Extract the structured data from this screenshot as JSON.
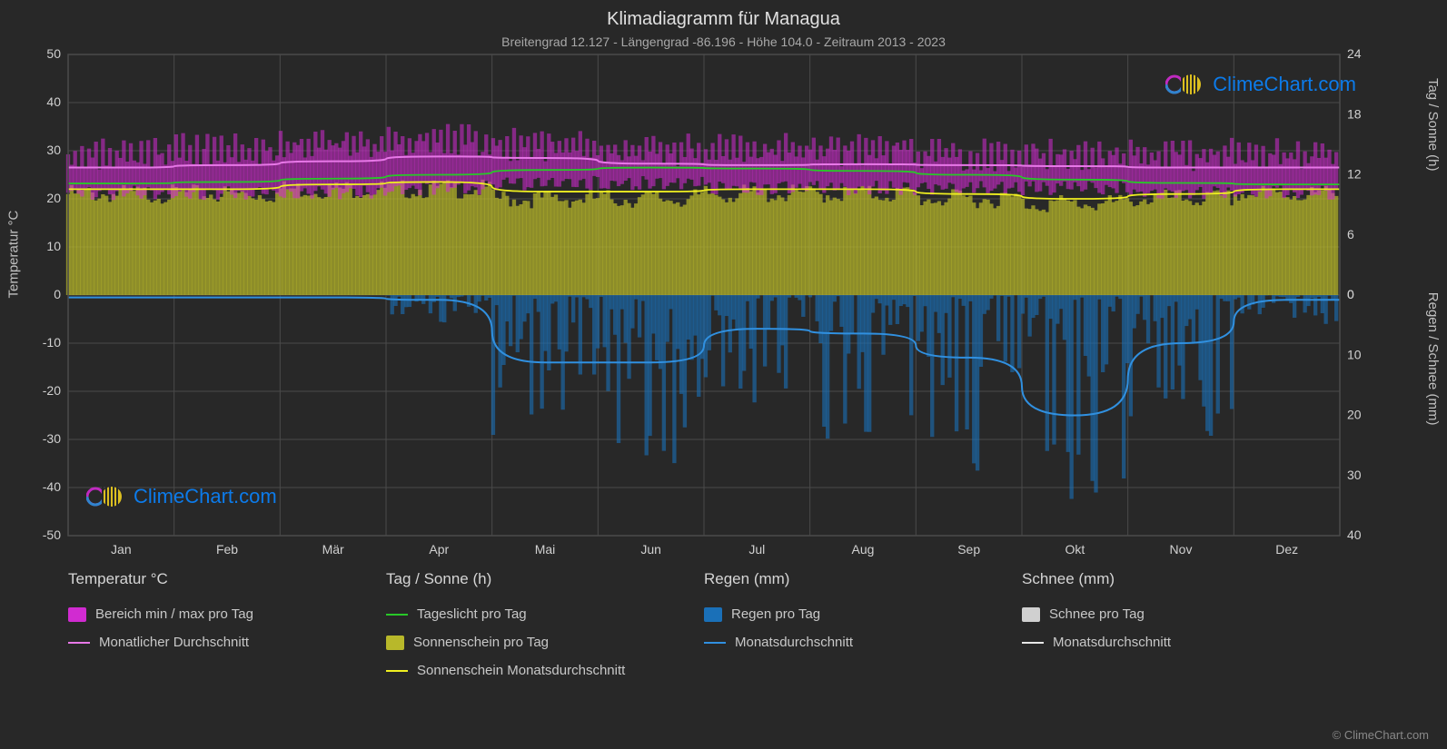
{
  "title": "Klimadiagramm für Managua",
  "subtitle": "Breitengrad 12.127 - Längengrad -86.196 - Höhe 104.0 - Zeitraum 2013 - 2023",
  "background_color": "#282828",
  "plot_background": "#2f2f2f",
  "grid_color": "#4a4a4a",
  "text_color": "#d0d0d0",
  "axis_left": {
    "label": "Temperatur °C",
    "min": -50,
    "max": 50,
    "ticks": [
      -50,
      -40,
      -30,
      -20,
      -10,
      0,
      10,
      20,
      30,
      40,
      50
    ]
  },
  "axis_right_top": {
    "label": "Tag / Sonne (h)",
    "min": 0,
    "max": 24,
    "ticks": [
      0,
      6,
      12,
      18,
      24
    ]
  },
  "axis_right_bottom": {
    "label": "Regen / Schnee (mm)",
    "min": 0,
    "max": 40,
    "ticks": [
      0,
      10,
      20,
      30,
      40
    ]
  },
  "months": [
    "Jan",
    "Feb",
    "Mär",
    "Apr",
    "Mai",
    "Jun",
    "Jul",
    "Aug",
    "Sep",
    "Okt",
    "Nov",
    "Dez"
  ],
  "series": {
    "temp_range": {
      "color": "#d12bd1",
      "min": [
        22,
        22,
        22,
        23,
        24,
        24,
        23,
        23,
        23,
        23,
        22,
        22
      ],
      "max": [
        31,
        32,
        33,
        34,
        33,
        32,
        32,
        32,
        31,
        31,
        31,
        31
      ]
    },
    "temp_avg": {
      "color": "#e878e8",
      "values": [
        26.5,
        27.0,
        27.8,
        28.8,
        28.5,
        27.3,
        27.0,
        27.2,
        27.0,
        26.8,
        26.5,
        26.5
      ]
    },
    "daylight": {
      "color": "#28c828",
      "values": [
        23.2,
        23.5,
        24.2,
        25.0,
        26.0,
        26.5,
        26.3,
        25.8,
        25.0,
        24.0,
        23.3,
        23.0
      ]
    },
    "sunshine_bars": {
      "color": "#b8b82a",
      "values": [
        22,
        22,
        23,
        23,
        21,
        21,
        22,
        22,
        21,
        20,
        21,
        22
      ]
    },
    "sunshine_avg": {
      "color": "#f0f020",
      "values": [
        22,
        22,
        23,
        23.5,
        21.5,
        21.5,
        22,
        22,
        21,
        20,
        21,
        22
      ]
    },
    "rain_bars": {
      "color": "#1a70b8",
      "max_spikes": [
        0,
        0,
        0,
        5,
        25,
        30,
        20,
        25,
        30,
        38,
        25,
        5
      ]
    },
    "rain_avg": {
      "color": "#3090e0",
      "values": [
        -0.5,
        -0.5,
        -0.5,
        -1,
        -14,
        -14,
        -7,
        -8,
        -13,
        -25,
        -10,
        -1
      ]
    },
    "snow_bars": {
      "color": "#d0d0d0",
      "values": [
        0,
        0,
        0,
        0,
        0,
        0,
        0,
        0,
        0,
        0,
        0,
        0
      ]
    },
    "snow_avg": {
      "color": "#e8e8e8",
      "values": [
        0,
        0,
        0,
        0,
        0,
        0,
        0,
        0,
        0,
        0,
        0,
        0
      ]
    }
  },
  "legend": {
    "col1": {
      "header": "Temperatur °C",
      "items": [
        {
          "type": "swatch",
          "color": "#d12bd1",
          "label": "Bereich min / max pro Tag"
        },
        {
          "type": "line",
          "color": "#e878e8",
          "label": "Monatlicher Durchschnitt"
        }
      ]
    },
    "col2": {
      "header": "Tag / Sonne (h)",
      "items": [
        {
          "type": "line",
          "color": "#28c828",
          "label": "Tageslicht pro Tag"
        },
        {
          "type": "swatch",
          "color": "#b8b82a",
          "label": "Sonnenschein pro Tag"
        },
        {
          "type": "line",
          "color": "#f0f020",
          "label": "Sonnenschein Monatsdurchschnitt"
        }
      ]
    },
    "col3": {
      "header": "Regen (mm)",
      "items": [
        {
          "type": "swatch",
          "color": "#1a70b8",
          "label": "Regen pro Tag"
        },
        {
          "type": "line",
          "color": "#3090e0",
          "label": "Monatsdurchschnitt"
        }
      ]
    },
    "col4": {
      "header": "Schnee (mm)",
      "items": [
        {
          "type": "swatch",
          "color": "#d0d0d0",
          "label": "Schnee pro Tag"
        },
        {
          "type": "line",
          "color": "#e8e8e8",
          "label": "Monatsdurchschnitt"
        }
      ]
    }
  },
  "watermark": {
    "text": "ClimeChart.com",
    "copyright": "© ClimeChart.com"
  }
}
